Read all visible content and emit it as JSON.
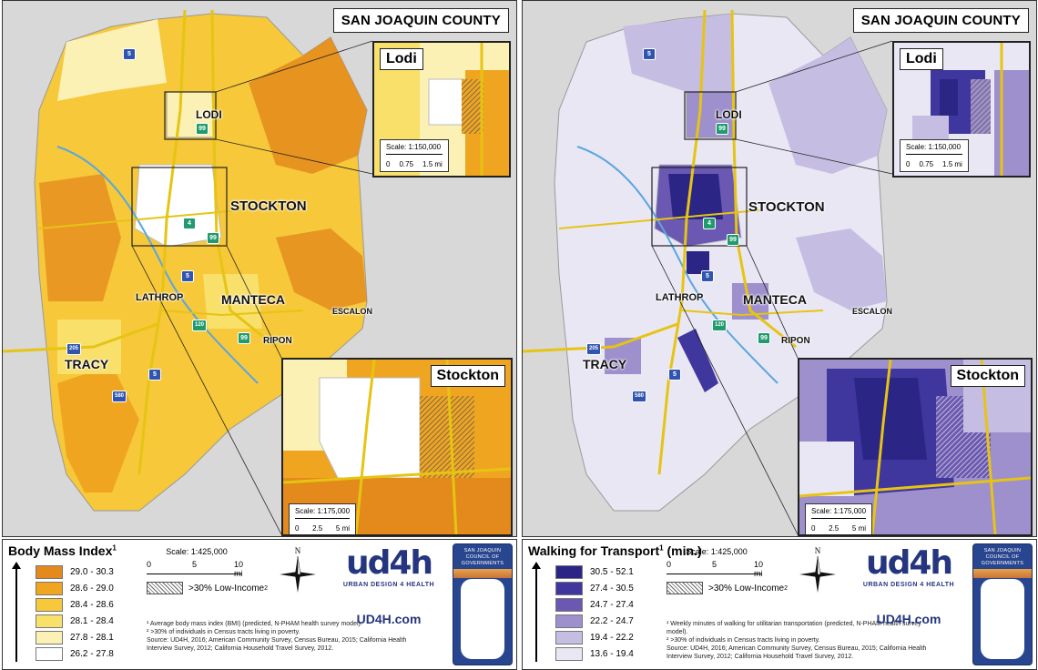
{
  "colors": {
    "bmi": [
      "#e48a1c",
      "#f0a521",
      "#f6c83a",
      "#f9e06a",
      "#fcf1b4",
      "#ffffff"
    ],
    "walk": [
      "#2b2586",
      "#40379e",
      "#6a58b3",
      "#9e8fcd",
      "#c6bee2",
      "#e9e7f4"
    ],
    "road": "#e6c413",
    "water": "#5aa6e0",
    "background": "#d8d8d8"
  },
  "left": {
    "county_title": "SAN JOAQUIN COUNTY",
    "inset_lodi": {
      "title": "Lodi",
      "scale": "Scale: 1:150,000",
      "ticks": [
        "0",
        "0.75",
        "1.5 mi"
      ]
    },
    "inset_stockton": {
      "title": "Stockton",
      "scale": "Scale: 1:175,000",
      "ticks": [
        "0",
        "2.5",
        "5 mi"
      ]
    },
    "cities": {
      "lodi": "LODI",
      "stockton": "STOCKTON",
      "lathrop": "LATHROP",
      "manteca": "MANTECA",
      "escalon": "ESCALON",
      "ripon": "RIPON",
      "tracy": "TRACY"
    },
    "legend": {
      "title": "Body Mass Index",
      "title_sup": "1",
      "classes": [
        "29.0 - 30.3",
        "28.6 - 29.0",
        "28.4 - 28.6",
        "28.1 - 28.4",
        "27.8 - 28.1",
        "26.2 - 27.8"
      ],
      "scale_label": "Scale: 1:425,000",
      "scale_ticks": [
        "0",
        "5",
        "10 mi"
      ],
      "low_income": ">30% Low-Income",
      "low_income_sup": "2",
      "note1": "¹ Average body mass index (BMI) (predicted, N-PHAM health survey model).",
      "note2": "² >30% of individuals in Census tracts living in poverty.",
      "source": "Source: UD4H, 2016; American Community Survey, Census Bureau, 2015; California Health Interview Survey, 2012; California Household Travel Survey, 2012.",
      "compass_n": "N",
      "ud4h_logo": "ud4h",
      "ud4h_tag": "URBAN DESIGN 4 HEALTH",
      "ud4h_url": "UD4H.com",
      "sjcog_text": "SAN JOAQUIN COUNCIL OF GOVERNMENTS"
    }
  },
  "right": {
    "county_title": "SAN JOAQUIN COUNTY",
    "inset_lodi": {
      "title": "Lodi",
      "scale": "Scale: 1:150,000",
      "ticks": [
        "0",
        "0.75",
        "1.5 mi"
      ]
    },
    "inset_stockton": {
      "title": "Stockton",
      "scale": "Scale: 1:175,000",
      "ticks": [
        "0",
        "2.5",
        "5 mi"
      ]
    },
    "cities": {
      "lodi": "LODI",
      "stockton": "STOCKTON",
      "lathrop": "LATHROP",
      "manteca": "MANTECA",
      "escalon": "ESCALON",
      "ripon": "RIPON",
      "tracy": "TRACY"
    },
    "legend": {
      "title": "Walking for Transport",
      "title_sup": "1",
      "title_suffix": " (min.)",
      "classes": [
        "30.5 - 52.1",
        "27.4 - 30.5",
        "24.7 - 27.4",
        "22.2 - 24.7",
        "19.4 - 22.2",
        "13.6 - 19.4"
      ],
      "scale_label": "Scale: 1:425,000",
      "scale_ticks": [
        "0",
        "5",
        "10 mi"
      ],
      "low_income": ">30% Low-Income",
      "low_income_sup": "2",
      "note1": "¹ Weekly minutes of walking for utilitarian transportation (predicted, N-PHAM health survey model).",
      "note2": "² >30% of individuals in Census tracts living in poverty.",
      "source": "Source: UD4H, 2016; American Community Survey, Census Bureau, 2015; California Health Interview Survey, 2012; California Household Travel Survey, 2012.",
      "compass_n": "N",
      "ud4h_logo": "ud4h",
      "ud4h_tag": "URBAN DESIGN 4 HEALTH",
      "ud4h_url": "UD4H.com",
      "sjcog_text": "SAN JOAQUIN COUNCIL OF GOVERNMENTS"
    }
  },
  "shields": {
    "i5": "5",
    "i205": "205",
    "i580": "580",
    "sr99": "99",
    "sr4": "4",
    "sr120": "120"
  }
}
